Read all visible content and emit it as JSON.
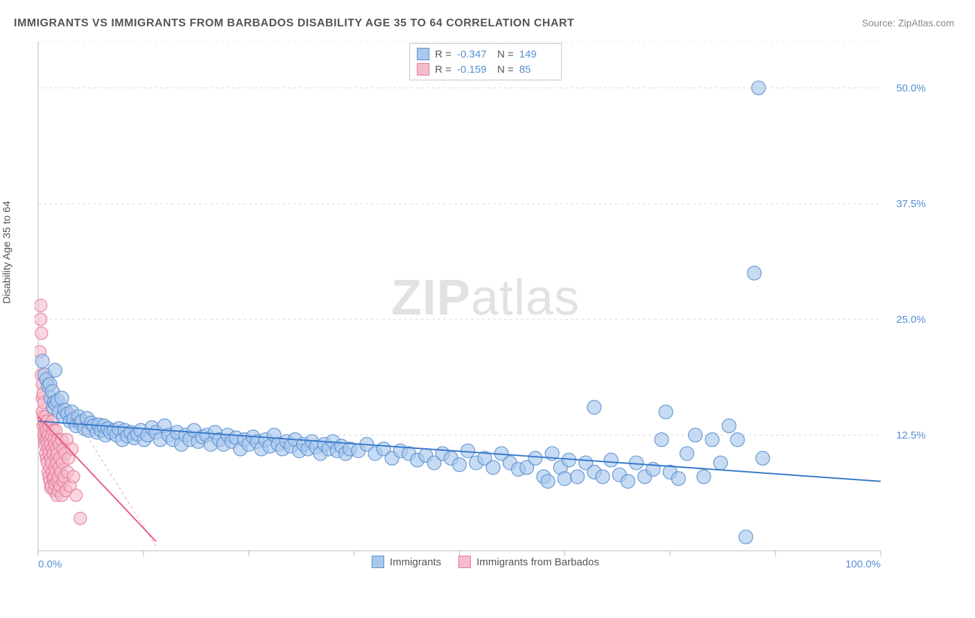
{
  "title": "IMMIGRANTS VS IMMIGRANTS FROM BARBADOS DISABILITY AGE 35 TO 64 CORRELATION CHART",
  "source_label": "Source: ZipAtlas.com",
  "y_axis_label": "Disability Age 35 to 64",
  "watermark_bold": "ZIP",
  "watermark_light": "atlas",
  "chart": {
    "type": "scatter",
    "background_color": "#ffffff",
    "grid_color": "#d9d9d9",
    "axis_color": "#bbbbbb",
    "text_color": "#555555",
    "value_color": "#548fd6",
    "xlim": [
      0,
      100
    ],
    "ylim": [
      0,
      55
    ],
    "x_ticks": [
      0,
      12.5,
      25,
      37.5,
      50,
      62.5,
      75,
      87.5,
      100
    ],
    "x_tick_labels": {
      "0": "0.0%",
      "100": "100.0%"
    },
    "y_ticks": [
      12.5,
      25.0,
      37.5,
      50.0
    ],
    "y_tick_labels": [
      "12.5%",
      "25.0%",
      "37.5%",
      "50.0%"
    ],
    "series": [
      {
        "name": "Immigrants",
        "color_fill": "#a9c8ec",
        "color_stroke": "#5a8fd0",
        "marker_opacity": 0.65,
        "marker_radius": 10,
        "R": "-0.347",
        "N": "149",
        "trend_line": {
          "x1": 0,
          "y1": 14.0,
          "x2": 100,
          "y2": 7.5,
          "color": "#3678c9",
          "width": 2,
          "dash": "none"
        },
        "points": [
          [
            0.5,
            20.5
          ],
          [
            0.8,
            19.0
          ],
          [
            1.0,
            18.5
          ],
          [
            1.2,
            17.8
          ],
          [
            1.4,
            18.0
          ],
          [
            1.5,
            16.5
          ],
          [
            1.7,
            17.2
          ],
          [
            1.8,
            15.5
          ],
          [
            1.9,
            16.0
          ],
          [
            2.0,
            19.5
          ],
          [
            2.1,
            15.8
          ],
          [
            2.3,
            16.2
          ],
          [
            2.5,
            15.0
          ],
          [
            2.8,
            16.5
          ],
          [
            3.0,
            14.5
          ],
          [
            3.2,
            15.2
          ],
          [
            3.5,
            14.8
          ],
          [
            3.8,
            14.0
          ],
          [
            4.0,
            15.0
          ],
          [
            4.2,
            14.2
          ],
          [
            4.5,
            13.5
          ],
          [
            4.8,
            14.5
          ],
          [
            5.0,
            13.8
          ],
          [
            5.2,
            14.0
          ],
          [
            5.5,
            13.2
          ],
          [
            5.8,
            14.3
          ],
          [
            6.0,
            13.0
          ],
          [
            6.3,
            13.8
          ],
          [
            6.6,
            13.5
          ],
          [
            7.0,
            12.8
          ],
          [
            7.2,
            13.6
          ],
          [
            7.5,
            13.0
          ],
          [
            7.8,
            13.5
          ],
          [
            8.0,
            12.5
          ],
          [
            8.3,
            13.2
          ],
          [
            8.6,
            12.8
          ],
          [
            9.0,
            13.0
          ],
          [
            9.3,
            12.5
          ],
          [
            9.6,
            13.2
          ],
          [
            10.0,
            12.0
          ],
          [
            10.3,
            13.0
          ],
          [
            10.6,
            12.4
          ],
          [
            11.0,
            12.8
          ],
          [
            11.4,
            12.2
          ],
          [
            11.8,
            12.6
          ],
          [
            12.2,
            13.0
          ],
          [
            12.6,
            12.0
          ],
          [
            13.0,
            12.5
          ],
          [
            13.5,
            13.3
          ],
          [
            14.0,
            12.8
          ],
          [
            14.5,
            12.0
          ],
          [
            15.0,
            13.5
          ],
          [
            15.5,
            12.5
          ],
          [
            16.0,
            12.0
          ],
          [
            16.5,
            12.8
          ],
          [
            17.0,
            11.5
          ],
          [
            17.5,
            12.5
          ],
          [
            18.0,
            12.0
          ],
          [
            18.5,
            13.0
          ],
          [
            19.0,
            11.8
          ],
          [
            19.5,
            12.3
          ],
          [
            20.0,
            12.5
          ],
          [
            20.5,
            11.5
          ],
          [
            21.0,
            12.8
          ],
          [
            21.5,
            12.0
          ],
          [
            22.0,
            11.5
          ],
          [
            22.5,
            12.5
          ],
          [
            23.0,
            11.8
          ],
          [
            23.5,
            12.2
          ],
          [
            24.0,
            11.0
          ],
          [
            24.5,
            12.0
          ],
          [
            25.0,
            11.5
          ],
          [
            25.5,
            12.3
          ],
          [
            26.0,
            11.8
          ],
          [
            26.5,
            11.0
          ],
          [
            27.0,
            12.0
          ],
          [
            27.5,
            11.3
          ],
          [
            28.0,
            12.5
          ],
          [
            28.5,
            11.5
          ],
          [
            29.0,
            11.0
          ],
          [
            29.5,
            11.8
          ],
          [
            30.0,
            11.3
          ],
          [
            30.5,
            12.0
          ],
          [
            31.0,
            10.8
          ],
          [
            31.5,
            11.5
          ],
          [
            32.0,
            11.0
          ],
          [
            32.5,
            11.8
          ],
          [
            33.0,
            11.2
          ],
          [
            33.5,
            10.5
          ],
          [
            34.0,
            11.5
          ],
          [
            34.5,
            11.0
          ],
          [
            35.0,
            11.8
          ],
          [
            35.5,
            10.8
          ],
          [
            36.0,
            11.3
          ],
          [
            36.5,
            10.5
          ],
          [
            37.0,
            11.0
          ],
          [
            38.0,
            10.8
          ],
          [
            39.0,
            11.5
          ],
          [
            40.0,
            10.5
          ],
          [
            41.0,
            11.0
          ],
          [
            42.0,
            10.0
          ],
          [
            43.0,
            10.8
          ],
          [
            44.0,
            10.5
          ],
          [
            45.0,
            9.8
          ],
          [
            46.0,
            10.3
          ],
          [
            47.0,
            9.5
          ],
          [
            48.0,
            10.5
          ],
          [
            49.0,
            10.0
          ],
          [
            50.0,
            9.3
          ],
          [
            51.0,
            10.8
          ],
          [
            52.0,
            9.5
          ],
          [
            53.0,
            10.0
          ],
          [
            54.0,
            9.0
          ],
          [
            55.0,
            10.5
          ],
          [
            56.0,
            9.5
          ],
          [
            57.0,
            8.8
          ],
          [
            58.0,
            9.0
          ],
          [
            59.0,
            10.0
          ],
          [
            60.0,
            8.0
          ],
          [
            60.5,
            7.5
          ],
          [
            61.0,
            10.5
          ],
          [
            62.0,
            9.0
          ],
          [
            62.5,
            7.8
          ],
          [
            63.0,
            9.8
          ],
          [
            64.0,
            8.0
          ],
          [
            65.0,
            9.5
          ],
          [
            66.0,
            8.5
          ],
          [
            66.0,
            15.5
          ],
          [
            67.0,
            8.0
          ],
          [
            68.0,
            9.8
          ],
          [
            69.0,
            8.2
          ],
          [
            70.0,
            7.5
          ],
          [
            71.0,
            9.5
          ],
          [
            72.0,
            8.0
          ],
          [
            73.0,
            8.8
          ],
          [
            74.0,
            12.0
          ],
          [
            74.5,
            15.0
          ],
          [
            75.0,
            8.5
          ],
          [
            76.0,
            7.8
          ],
          [
            77.0,
            10.5
          ],
          [
            78.0,
            12.5
          ],
          [
            79.0,
            8.0
          ],
          [
            80.0,
            12.0
          ],
          [
            81.0,
            9.5
          ],
          [
            82.0,
            13.5
          ],
          [
            83.0,
            12.0
          ],
          [
            84.0,
            1.5
          ],
          [
            85.0,
            30.0
          ],
          [
            85.5,
            50.0
          ],
          [
            86.0,
            10.0
          ]
        ]
      },
      {
        "name": "Immigrants from Barbados",
        "color_fill": "#f5bccb",
        "color_stroke": "#e77a9a",
        "marker_opacity": 0.6,
        "marker_radius": 9,
        "R": "-0.159",
        "N": "85",
        "trend_line": {
          "x1": 0,
          "y1": 14.5,
          "x2": 14,
          "y2": 1.0,
          "color": "#e85a85",
          "width": 2,
          "dash": "none"
        },
        "trend_line_dashed": {
          "x1": 0.5,
          "y1": 20.0,
          "x2": 14,
          "y2": 0.5,
          "color": "#f0a5bc",
          "width": 1,
          "dash": "4,4"
        },
        "points": [
          [
            0.2,
            21.5
          ],
          [
            0.3,
            26.5
          ],
          [
            0.3,
            25.0
          ],
          [
            0.4,
            23.5
          ],
          [
            0.4,
            19.0
          ],
          [
            0.5,
            18.0
          ],
          [
            0.5,
            16.5
          ],
          [
            0.5,
            15.0
          ],
          [
            0.6,
            14.5
          ],
          [
            0.6,
            17.0
          ],
          [
            0.6,
            13.5
          ],
          [
            0.7,
            14.0
          ],
          [
            0.7,
            12.5
          ],
          [
            0.7,
            16.0
          ],
          [
            0.8,
            13.0
          ],
          [
            0.8,
            12.0
          ],
          [
            0.8,
            11.5
          ],
          [
            0.9,
            13.5
          ],
          [
            0.9,
            10.5
          ],
          [
            0.9,
            14.5
          ],
          [
            1.0,
            12.0
          ],
          [
            1.0,
            10.0
          ],
          [
            1.0,
            13.0
          ],
          [
            1.1,
            11.5
          ],
          [
            1.1,
            14.0
          ],
          [
            1.1,
            9.5
          ],
          [
            1.2,
            12.5
          ],
          [
            1.2,
            8.5
          ],
          [
            1.2,
            11.0
          ],
          [
            1.3,
            10.5
          ],
          [
            1.3,
            13.5
          ],
          [
            1.3,
            8.0
          ],
          [
            1.4,
            9.0
          ],
          [
            1.4,
            12.0
          ],
          [
            1.4,
            7.5
          ],
          [
            1.5,
            10.0
          ],
          [
            1.5,
            11.5
          ],
          [
            1.5,
            6.8
          ],
          [
            1.6,
            9.5
          ],
          [
            1.6,
            12.5
          ],
          [
            1.6,
            7.0
          ],
          [
            1.7,
            8.5
          ],
          [
            1.7,
            11.0
          ],
          [
            1.7,
            14.0
          ],
          [
            1.8,
            7.8
          ],
          [
            1.8,
            10.5
          ],
          [
            1.8,
            13.0
          ],
          [
            1.9,
            8.0
          ],
          [
            1.9,
            6.5
          ],
          [
            1.9,
            12.0
          ],
          [
            2.0,
            9.0
          ],
          [
            2.0,
            11.5
          ],
          [
            2.0,
            7.2
          ],
          [
            2.1,
            10.0
          ],
          [
            2.1,
            8.5
          ],
          [
            2.1,
            13.0
          ],
          [
            2.2,
            6.0
          ],
          [
            2.2,
            11.0
          ],
          [
            2.2,
            9.5
          ],
          [
            2.3,
            7.5
          ],
          [
            2.3,
            12.0
          ],
          [
            2.3,
            10.5
          ],
          [
            2.4,
            8.0
          ],
          [
            2.4,
            6.5
          ],
          [
            2.5,
            9.0
          ],
          [
            2.5,
            11.5
          ],
          [
            2.6,
            7.0
          ],
          [
            2.6,
            10.0
          ],
          [
            2.7,
            8.5
          ],
          [
            2.8,
            12.0
          ],
          [
            2.8,
            6.0
          ],
          [
            2.9,
            9.5
          ],
          [
            3.0,
            7.5
          ],
          [
            3.0,
            11.0
          ],
          [
            3.1,
            8.0
          ],
          [
            3.2,
            10.5
          ],
          [
            3.3,
            6.5
          ],
          [
            3.4,
            12.0
          ],
          [
            3.5,
            8.5
          ],
          [
            3.6,
            10.0
          ],
          [
            3.8,
            7.0
          ],
          [
            4.0,
            11.0
          ],
          [
            4.2,
            8.0
          ],
          [
            4.5,
            6.0
          ],
          [
            5.0,
            3.5
          ]
        ]
      }
    ]
  },
  "legend_bottom": [
    {
      "swatch": "blue",
      "label": "Immigrants"
    },
    {
      "swatch": "pink",
      "label": "Immigrants from Barbados"
    }
  ]
}
